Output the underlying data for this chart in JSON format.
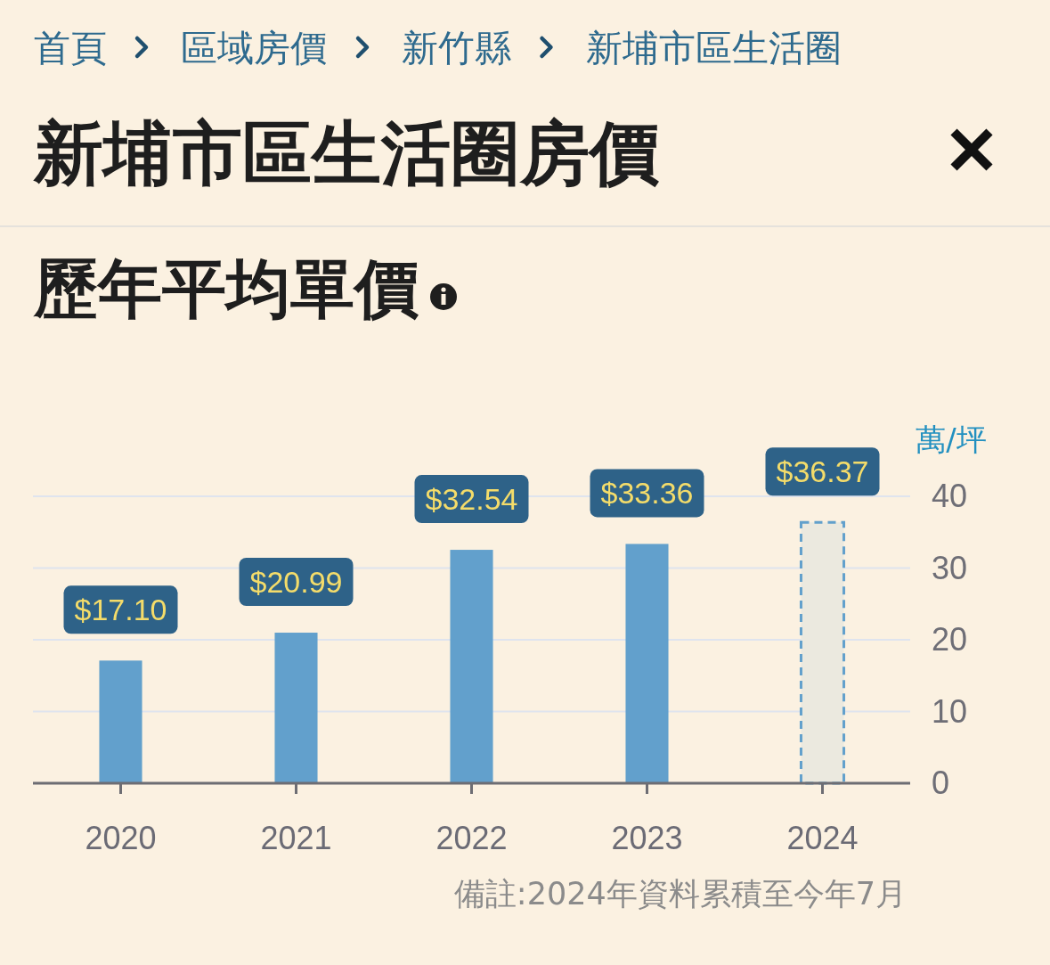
{
  "chart_data": {
    "type": "bar",
    "title": "新埔市區生活圈房價",
    "subtitle": "歷年平均單價",
    "ylabel": "萬/坪",
    "annotations": [
      "首頁",
      "區域房價",
      "新竹縣",
      "新埔市區生活圈",
      "備註:2024年資料累積至今年7月"
    ],
    "categories": [
      "2020",
      "2021",
      "2022",
      "2023",
      "2024"
    ],
    "series": [
      {
        "color": "#62a0cc",
        "values": [
          17.1,
          20.99,
          32.54,
          33.36,
          null
        ],
        "value_labels": [
          "$17.10",
          "$20.99",
          "$32.54",
          "$33.36",
          null
        ]
      },
      {
        "color": "#ebe9df",
        "line_style": "dashed",
        "values": [
          null,
          null,
          null,
          null,
          36.37
        ],
        "value_labels": [
          null,
          null,
          null,
          null,
          "$36.37"
        ]
      }
    ],
    "ylim": [
      0,
      40
    ],
    "yticks": [
      0,
      10,
      20,
      30,
      40
    ],
    "grid": "y"
  }
}
